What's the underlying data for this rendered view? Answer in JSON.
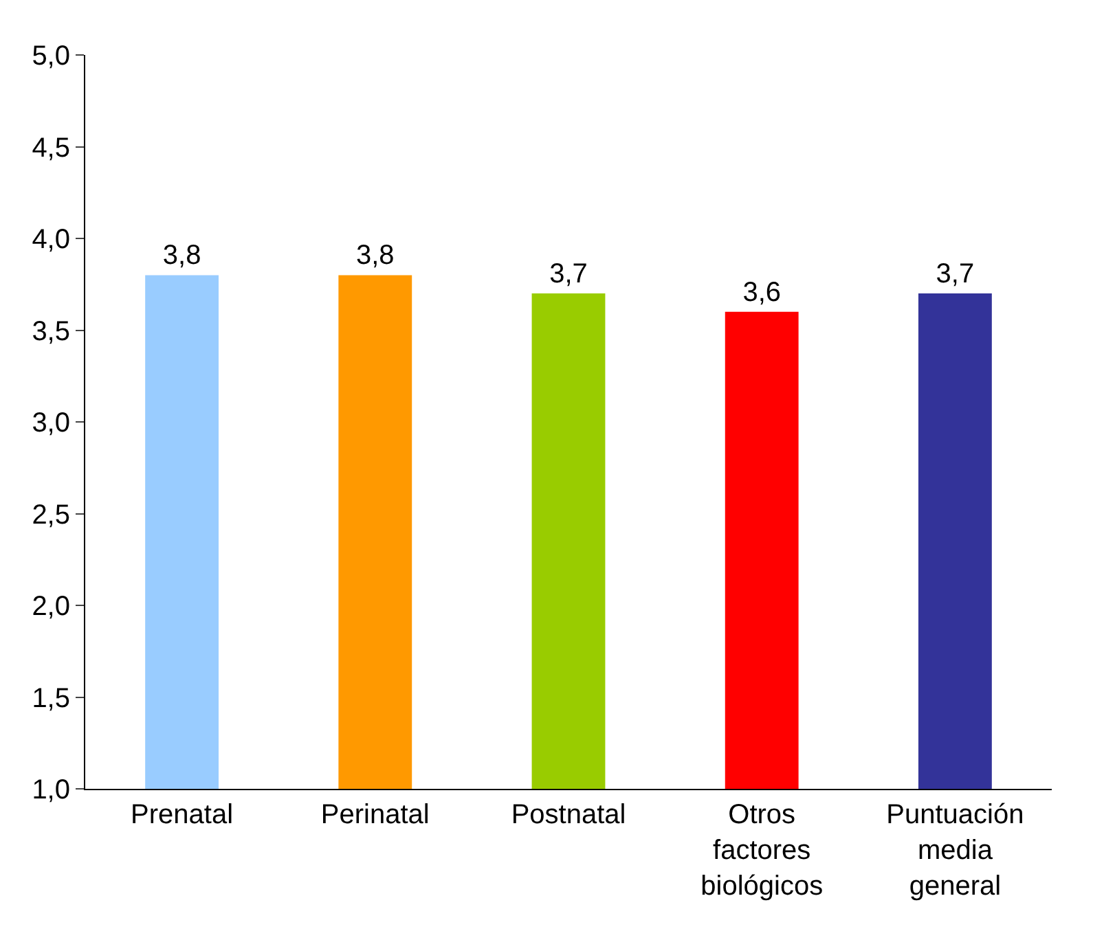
{
  "chart_data": {
    "type": "bar",
    "categories": [
      "Prenatal",
      "Perinatal",
      "Postnatal",
      "Otros factores biológicos",
      "Puntuación media general"
    ],
    "values": [
      3.8,
      3.8,
      3.7,
      3.6,
      3.7
    ],
    "value_labels": [
      "3,8",
      "3,8",
      "3,7",
      "3,6",
      "3,7"
    ],
    "colors": [
      "#99ccff",
      "#ff9900",
      "#99cc00",
      "#ff0000",
      "#333399"
    ],
    "ylim": [
      1,
      5
    ],
    "yticks": [
      {
        "value": 1,
        "label": "1,0"
      },
      {
        "value": 1.5,
        "label": "1,5"
      },
      {
        "value": 2,
        "label": "2,0"
      },
      {
        "value": 2.5,
        "label": "2,5"
      },
      {
        "value": 3,
        "label": "3,0"
      },
      {
        "value": 3.5,
        "label": "3,5"
      },
      {
        "value": 4,
        "label": "4,0"
      },
      {
        "value": 4.5,
        "label": "4,5"
      },
      {
        "value": 5,
        "label": "5,0"
      }
    ],
    "grid": false
  }
}
